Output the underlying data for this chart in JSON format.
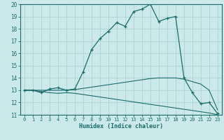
{
  "xlabel": "Humidex (Indice chaleur)",
  "background_color": "#cce9e9",
  "grid_color": "#aad4d4",
  "line_color": "#1a6b6b",
  "xlim": [
    -0.5,
    23.5
  ],
  "ylim": [
    11,
    20
  ],
  "xticks": [
    0,
    1,
    2,
    3,
    4,
    5,
    6,
    7,
    8,
    9,
    10,
    11,
    12,
    13,
    14,
    15,
    16,
    17,
    18,
    19,
    20,
    21,
    22,
    23
  ],
  "yticks": [
    11,
    12,
    13,
    14,
    15,
    16,
    17,
    18,
    19,
    20
  ],
  "main_line": [
    13.0,
    13.0,
    12.8,
    13.1,
    13.2,
    13.0,
    13.1,
    14.5,
    16.3,
    17.2,
    17.8,
    18.5,
    18.2,
    19.4,
    19.6,
    20.0,
    18.6,
    18.85,
    19.0,
    14.0,
    12.8,
    11.9,
    12.0,
    11.1
  ],
  "upper_line": [
    13.0,
    13.0,
    13.0,
    13.0,
    13.0,
    13.0,
    13.05,
    13.15,
    13.25,
    13.35,
    13.45,
    13.55,
    13.65,
    13.75,
    13.85,
    13.95,
    14.0,
    14.0,
    14.0,
    13.9,
    13.7,
    13.5,
    13.0,
    11.4
  ],
  "lower_line": [
    13.0,
    13.0,
    12.9,
    12.8,
    12.75,
    12.8,
    12.75,
    12.65,
    12.55,
    12.45,
    12.35,
    12.25,
    12.15,
    12.05,
    11.95,
    11.85,
    11.75,
    11.65,
    11.55,
    11.45,
    11.35,
    11.25,
    11.15,
    11.0
  ]
}
